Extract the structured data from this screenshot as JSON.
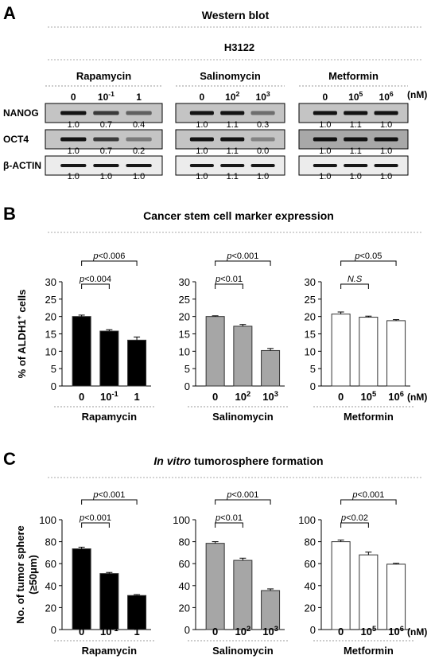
{
  "panels": {
    "A": {
      "letter": "A",
      "title": "Western blot",
      "cell_line": "H3122",
      "unit": "(nM)",
      "markers": [
        "NANOG",
        "OCT4",
        "β-ACTIN"
      ],
      "groups": [
        {
          "drug": "Rapamycin",
          "doses": [
            [
              "0",
              ""
            ],
            [
              "10",
              "-1"
            ],
            [
              "1",
              ""
            ]
          ],
          "values": [
            [
              "1.0",
              "0.7",
              "0.4"
            ],
            [
              "1.0",
              "0.7",
              "0.2"
            ],
            [
              "1.0",
              "1.0",
              "1.0"
            ]
          ]
        },
        {
          "drug": "Salinomycin",
          "doses": [
            [
              "0",
              ""
            ],
            [
              "10",
              "2"
            ],
            [
              "10",
              "3"
            ]
          ],
          "values": [
            [
              "1.0",
              "1.1",
              "0.3"
            ],
            [
              "1.0",
              "1.1",
              "0.0"
            ],
            [
              "1.0",
              "1.1",
              "1.0"
            ]
          ]
        },
        {
          "drug": "Metformin",
          "doses": [
            [
              "0",
              ""
            ],
            [
              "10",
              "5"
            ],
            [
              "10",
              "6"
            ]
          ],
          "values": [
            [
              "1.0",
              "1.1",
              "1.0"
            ],
            [
              "1.0",
              "1.1",
              "1.0"
            ],
            [
              "1.0",
              "1.0",
              "1.0"
            ]
          ]
        }
      ]
    },
    "B": {
      "letter": "B",
      "title": "Cancer stem cell marker expression"
    },
    "C": {
      "letter": "C",
      "title_italic": "In vitro",
      "title_rest": " tumorosphere formation"
    }
  },
  "colors": {
    "rapamycin": "#000000",
    "salinomycin": "#a6a6a6",
    "metformin": "#ffffff",
    "edge": "#333333",
    "dotted": "#aaaaaa"
  },
  "chart_data": [
    {
      "type": "bar",
      "panel": "B",
      "ylabel_parts": [
        "% of ALDH1",
        "+",
        " cells"
      ],
      "ylim": [
        0,
        30
      ],
      "yticks": [
        0,
        5,
        10,
        15,
        20,
        25,
        30
      ],
      "unit": "(nM)",
      "groups": [
        {
          "drug": "Rapamycin",
          "categories": [
            [
              "0",
              ""
            ],
            [
              "10",
              "-1"
            ],
            [
              "1",
              ""
            ]
          ],
          "values": [
            20.0,
            15.8,
            13.2
          ],
          "errors": [
            0.4,
            0.4,
            0.9
          ],
          "color_key": "rapamycin",
          "brackets": [
            {
              "from": 0,
              "to": 1,
              "label": "p<0.004"
            },
            {
              "from": 0,
              "to": 2,
              "label": "p<0.006"
            }
          ]
        },
        {
          "drug": "Salinomycin",
          "categories": [
            [
              "0",
              ""
            ],
            [
              "10",
              "2"
            ],
            [
              "10",
              "3"
            ]
          ],
          "values": [
            20.0,
            17.2,
            10.2
          ],
          "errors": [
            0.2,
            0.5,
            0.6
          ],
          "color_key": "salinomycin",
          "brackets": [
            {
              "from": 0,
              "to": 1,
              "label": "p<0.01"
            },
            {
              "from": 0,
              "to": 2,
              "label": "p<0.001"
            }
          ]
        },
        {
          "drug": "Metformin",
          "categories": [
            [
              "0",
              ""
            ],
            [
              "10",
              "5"
            ],
            [
              "10",
              "6"
            ]
          ],
          "values": [
            20.7,
            19.8,
            18.8
          ],
          "errors": [
            0.6,
            0.3,
            0.3
          ],
          "color_key": "metformin",
          "brackets": [
            {
              "from": 0,
              "to": 1,
              "label": "N.S",
              "italic": true
            },
            {
              "from": 0,
              "to": 2,
              "label": "p<0.05"
            }
          ]
        }
      ]
    },
    {
      "type": "bar",
      "panel": "C",
      "ylabel_lines": [
        "No. of tumor  sphere",
        "(≥50μm)"
      ],
      "ylim": [
        0,
        100
      ],
      "yticks": [
        0,
        20,
        40,
        60,
        80,
        100
      ],
      "unit": "(nM)",
      "groups": [
        {
          "drug": "Rapamycin",
          "categories": [
            [
              "0",
              ""
            ],
            [
              "10",
              "-1"
            ],
            [
              "1",
              ""
            ]
          ],
          "values": [
            73.5,
            51.0,
            31.0
          ],
          "errors": [
            1.5,
            1.0,
            0.8
          ],
          "color_key": "rapamycin",
          "brackets": [
            {
              "from": 0,
              "to": 1,
              "label": "p<0.001"
            },
            {
              "from": 0,
              "to": 2,
              "label": "p<0.001"
            }
          ]
        },
        {
          "drug": "Salinomycin",
          "categories": [
            [
              "0",
              ""
            ],
            [
              "10",
              "2"
            ],
            [
              "10",
              "3"
            ]
          ],
          "values": [
            78.5,
            63.0,
            35.5
          ],
          "errors": [
            1.5,
            2.0,
            1.5
          ],
          "color_key": "salinomycin",
          "brackets": [
            {
              "from": 0,
              "to": 1,
              "label": "p<0.01"
            },
            {
              "from": 0,
              "to": 2,
              "label": "p<0.001"
            }
          ]
        },
        {
          "drug": "Metformin",
          "categories": [
            [
              "0",
              ""
            ],
            [
              "10",
              "5"
            ],
            [
              "10",
              "6"
            ]
          ],
          "values": [
            80.0,
            68.0,
            59.5
          ],
          "errors": [
            1.5,
            2.5,
            0.8
          ],
          "color_key": "metformin",
          "brackets": [
            {
              "from": 0,
              "to": 1,
              "label": "p<0.02"
            },
            {
              "from": 0,
              "to": 2,
              "label": "p<0.001"
            }
          ]
        }
      ]
    }
  ]
}
